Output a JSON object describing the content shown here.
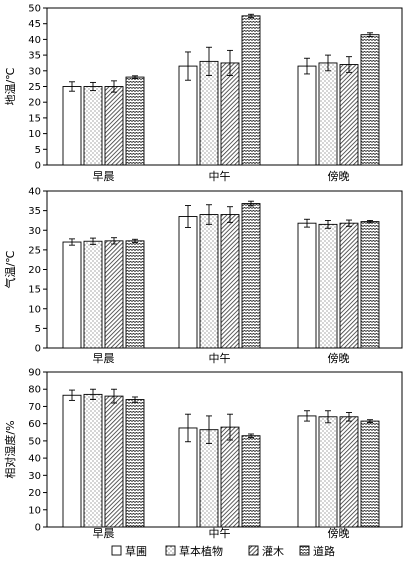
{
  "colors": {
    "axis": "#000000",
    "bar_fill": "#ffffff",
    "pattern": "#333333"
  },
  "legend": {
    "items": [
      {
        "name": "草圃",
        "pattern": "blank"
      },
      {
        "name": "草本植物",
        "pattern": "dots"
      },
      {
        "name": "灌木",
        "pattern": "diagonal"
      },
      {
        "name": "道路",
        "pattern": "wave"
      }
    ]
  },
  "chart_data": [
    {
      "type": "bar",
      "ylabel": "地温/℃",
      "ylim": [
        0,
        50
      ],
      "yticks": [
        0,
        5,
        10,
        15,
        20,
        25,
        30,
        35,
        40,
        45,
        50
      ],
      "categories": [
        "早晨",
        "中午",
        "傍晚"
      ],
      "series": [
        {
          "name": "草圃",
          "values": [
            25.0,
            31.5,
            31.5
          ],
          "errors": [
            1.5,
            4.5,
            2.5
          ]
        },
        {
          "name": "草本植物",
          "values": [
            25.0,
            33.0,
            32.5
          ],
          "errors": [
            1.3,
            4.5,
            2.5
          ]
        },
        {
          "name": "灌木",
          "values": [
            25.0,
            32.5,
            32.0
          ],
          "errors": [
            1.8,
            4.0,
            2.5
          ]
        },
        {
          "name": "道路",
          "values": [
            28.0,
            47.5,
            41.5
          ],
          "errors": [
            0.4,
            0.5,
            0.6
          ]
        }
      ]
    },
    {
      "type": "bar",
      "ylabel": "气温/℃",
      "ylim": [
        0,
        40
      ],
      "yticks": [
        0,
        5,
        10,
        15,
        20,
        25,
        30,
        35,
        40
      ],
      "categories": [
        "早晨",
        "中午",
        "傍晚"
      ],
      "series": [
        {
          "name": "草圃",
          "values": [
            27.0,
            33.5,
            31.8
          ],
          "errors": [
            0.8,
            2.8,
            1.0
          ]
        },
        {
          "name": "草本植物",
          "values": [
            27.2,
            34.0,
            31.5
          ],
          "errors": [
            0.8,
            2.5,
            1.0
          ]
        },
        {
          "name": "灌木",
          "values": [
            27.3,
            34.0,
            31.8
          ],
          "errors": [
            0.8,
            2.0,
            0.8
          ]
        },
        {
          "name": "道路",
          "values": [
            27.3,
            36.8,
            32.2
          ],
          "errors": [
            0.4,
            0.6,
            0.3
          ]
        }
      ]
    },
    {
      "type": "bar",
      "ylabel": "相对湿度/%",
      "ylim": [
        0,
        90
      ],
      "yticks": [
        0,
        10,
        20,
        30,
        40,
        50,
        60,
        70,
        80,
        90
      ],
      "categories": [
        "早晨",
        "中午",
        "傍晚"
      ],
      "series": [
        {
          "name": "草圃",
          "values": [
            76.5,
            57.5,
            64.5
          ],
          "errors": [
            3.0,
            8.0,
            3.0
          ]
        },
        {
          "name": "草本植物",
          "values": [
            77.0,
            56.5,
            64.0
          ],
          "errors": [
            3.0,
            8.0,
            3.5
          ]
        },
        {
          "name": "灌木",
          "values": [
            76.0,
            58.0,
            64.0
          ],
          "errors": [
            4.0,
            7.5,
            2.5
          ]
        },
        {
          "name": "道路",
          "values": [
            74.0,
            53.0,
            61.5
          ],
          "errors": [
            1.5,
            1.0,
            0.8
          ]
        }
      ]
    }
  ]
}
